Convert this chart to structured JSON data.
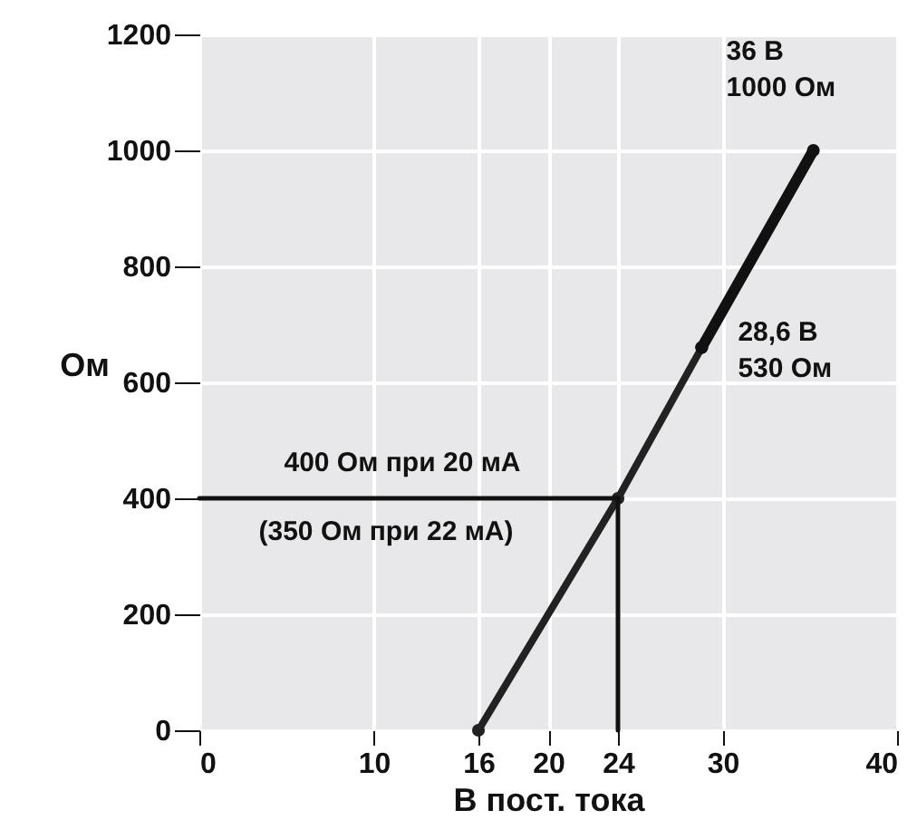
{
  "chart_data": {
    "type": "line",
    "xlabel": "В пост. тока",
    "ylabel": "Ом",
    "xlim": [
      0,
      40
    ],
    "ylim": [
      0,
      1200
    ],
    "xticks": [
      0,
      10,
      16,
      20,
      24,
      30,
      40
    ],
    "yticks": [
      0,
      200,
      400,
      600,
      800,
      1000,
      1200
    ],
    "grid": true,
    "marker": "circle",
    "line_style": "solid",
    "series": [
      {
        "color": "#222222",
        "x": [
          16,
          24,
          28.8
        ],
        "values": [
          0,
          400,
          660
        ]
      },
      {
        "color": "#111111",
        "x": [
          28.8,
          35.2
        ],
        "values": [
          660,
          1000
        ]
      },
      {
        "color": "#111111",
        "x": [
          0,
          24
        ],
        "values": [
          400,
          400
        ],
        "marker": "none"
      },
      {
        "color": "#111111",
        "x": [
          24,
          24
        ],
        "values": [
          0,
          400
        ],
        "marker": "none"
      }
    ],
    "annotations": [
      {
        "text": "36 В\n1000 Ом",
        "x": 35.2,
        "y": 1000
      },
      {
        "text": "28,6 В\n530 Ом",
        "x": 28.8,
        "y": 660
      },
      "400 Ом при 20 мА",
      "(350 Ом при 22 мА)"
    ]
  }
}
